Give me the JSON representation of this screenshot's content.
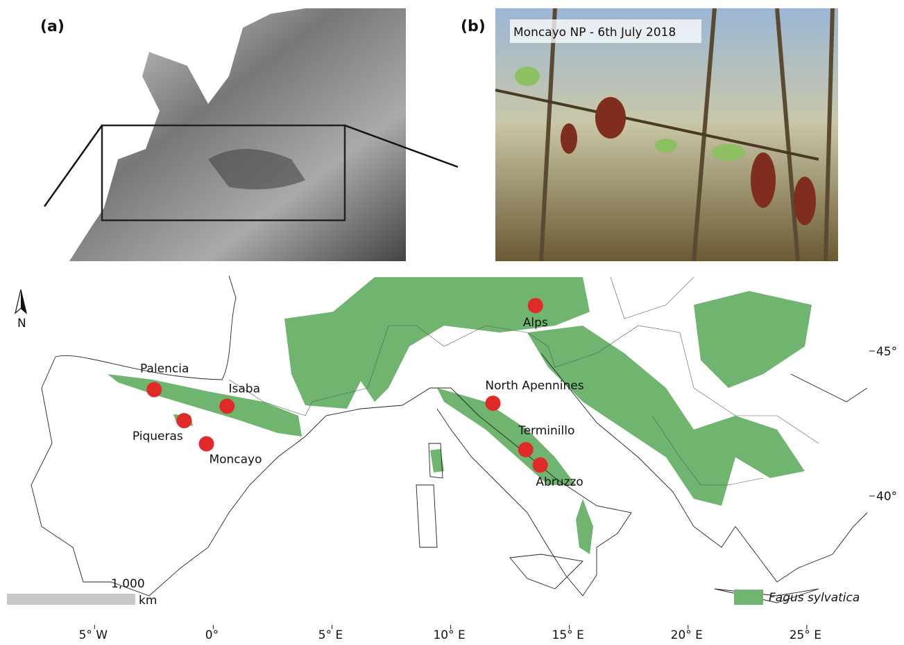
{
  "panel_a": {
    "label": "(a)"
  },
  "panel_b": {
    "label": "(b)",
    "caption": "Moncayo NP - 6th July 2018"
  },
  "map": {
    "north_label": "N",
    "xlim": [
      -8.4,
      27.4
    ],
    "ylim": [
      35.6,
      47.6
    ],
    "xticks": [
      {
        "value": -5,
        "label": "5° W"
      },
      {
        "value": 0,
        "label": "0°"
      },
      {
        "value": 5,
        "label": "5° E"
      },
      {
        "value": 10,
        "label": "10° E"
      },
      {
        "value": 15,
        "label": "15° E"
      },
      {
        "value": 20,
        "label": "20° E"
      },
      {
        "value": 25,
        "label": "25° E"
      }
    ],
    "yticks": [
      {
        "value": 45,
        "label": "45°"
      },
      {
        "value": 40,
        "label": "40°"
      }
    ],
    "scale_bar": {
      "value": 1000,
      "label": "1,000",
      "unit": "km"
    },
    "legend": {
      "label": "Fagus sylvatica",
      "color": "#6fb56f"
    },
    "site_color": "#e02a2a",
    "sites": [
      {
        "name": "Alps",
        "lon": 13.57,
        "lat": 46.57
      },
      {
        "name": "Palencia",
        "lon": -2.49,
        "lat": 43.67
      },
      {
        "name": "Isaba",
        "lon": 0.58,
        "lat": 43.1
      },
      {
        "name": "Piqueras",
        "lon": -1.23,
        "lat": 42.6
      },
      {
        "name": "Moncayo",
        "lon": -0.29,
        "lat": 41.8
      },
      {
        "name": "North Apennines",
        "lon": 11.78,
        "lat": 43.2
      },
      {
        "name": "Terminillo",
        "lon": 13.16,
        "lat": 41.6
      },
      {
        "name": "Abruzzo",
        "lon": 13.77,
        "lat": 41.07
      }
    ]
  }
}
